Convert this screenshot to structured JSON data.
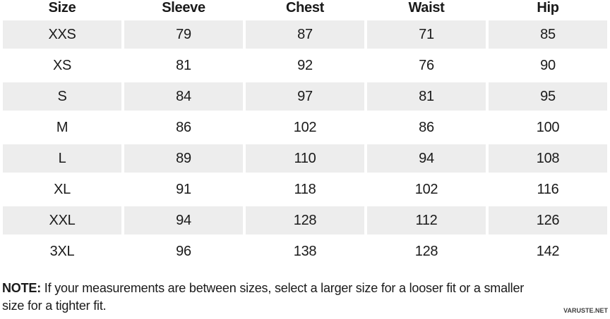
{
  "chart_data": {
    "type": "table",
    "columns": [
      "Size",
      "Sleeve",
      "Chest",
      "Waist",
      "Hip"
    ],
    "rows": [
      [
        "XXS",
        79,
        87,
        71,
        85
      ],
      [
        "XS",
        81,
        92,
        76,
        90
      ],
      [
        "S",
        84,
        97,
        81,
        95
      ],
      [
        "M",
        86,
        102,
        86,
        100
      ],
      [
        "L",
        89,
        110,
        94,
        108
      ],
      [
        "XL",
        91,
        118,
        102,
        116
      ],
      [
        "XXL",
        94,
        128,
        112,
        126
      ],
      [
        "3XL",
        96,
        138,
        128,
        142
      ]
    ],
    "layout": {
      "striped": true,
      "first_data_row_shaded": true,
      "cell_alignment": "center"
    }
  },
  "note": {
    "label": "NOTE:",
    "text": " If your measurements are between sizes, select a larger size for a looser fit or a smaller size for a tighter fit."
  },
  "watermark": "VARUSTE.NET",
  "colors": {
    "row_alt": "#ededed",
    "text": "#1a1a1a"
  }
}
